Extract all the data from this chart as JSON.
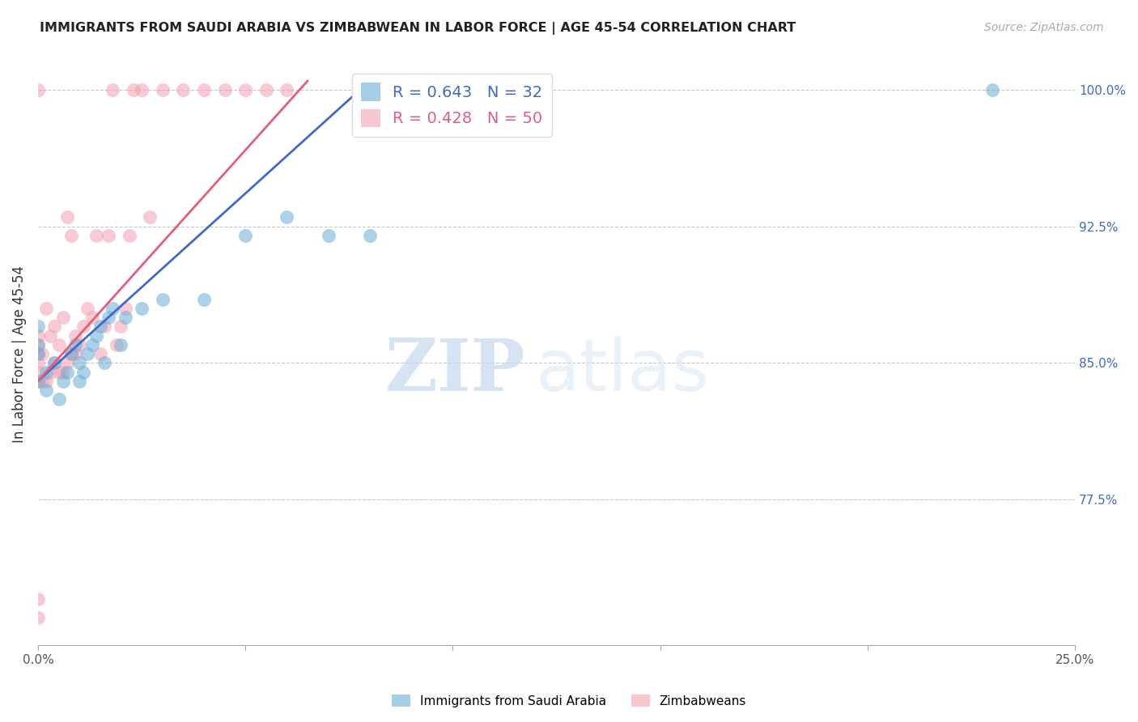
{
  "title": "IMMIGRANTS FROM SAUDI ARABIA VS ZIMBABWEAN IN LABOR FORCE | AGE 45-54 CORRELATION CHART",
  "source": "Source: ZipAtlas.com",
  "ylabel": "In Labor Force | Age 45-54",
  "saudi_R": 0.643,
  "saudi_N": 32,
  "zim_R": 0.428,
  "zim_N": 50,
  "saudi_color": "#6baed6",
  "zim_color": "#f4a0b0",
  "saudi_line_color": "#4169c8",
  "zim_line_color": "#e0607a",
  "right_tick_color": "#4169c8",
  "xlim": [
    0.0,
    0.25
  ],
  "ylim": [
    0.695,
    1.015
  ],
  "yticks_right": [
    0.775,
    0.85,
    0.925,
    1.0
  ],
  "ytick_labels_right": [
    "77.5%",
    "85.0%",
    "92.5%",
    "100.0%"
  ],
  "xticks": [
    0.0,
    0.05,
    0.1,
    0.15,
    0.2,
    0.25
  ],
  "xtick_labels": [
    "0.0%",
    "",
    "",
    "",
    "",
    "25.0%"
  ],
  "watermark_zip": "ZIP",
  "watermark_atlas": "atlas",
  "saudi_x": [
    0.0,
    0.0,
    0.0,
    0.0,
    0.002,
    0.002,
    0.004,
    0.005,
    0.006,
    0.007,
    0.008,
    0.009,
    0.01,
    0.01,
    0.011,
    0.012,
    0.013,
    0.014,
    0.015,
    0.016,
    0.017,
    0.018,
    0.02,
    0.021,
    0.025,
    0.03,
    0.04,
    0.05,
    0.06,
    0.07,
    0.08,
    0.23
  ],
  "saudi_y": [
    0.84,
    0.855,
    0.86,
    0.87,
    0.835,
    0.845,
    0.85,
    0.83,
    0.84,
    0.845,
    0.855,
    0.86,
    0.84,
    0.85,
    0.845,
    0.855,
    0.86,
    0.865,
    0.87,
    0.85,
    0.875,
    0.88,
    0.86,
    0.875,
    0.88,
    0.885,
    0.885,
    0.92,
    0.93,
    0.92,
    0.92,
    1.0
  ],
  "zim_x": [
    0.0,
    0.0,
    0.0,
    0.0,
    0.0,
    0.0,
    0.0,
    0.0,
    0.0,
    0.001,
    0.001,
    0.002,
    0.002,
    0.003,
    0.003,
    0.004,
    0.004,
    0.005,
    0.005,
    0.006,
    0.006,
    0.007,
    0.007,
    0.008,
    0.008,
    0.009,
    0.009,
    0.01,
    0.011,
    0.012,
    0.013,
    0.014,
    0.015,
    0.016,
    0.017,
    0.018,
    0.019,
    0.02,
    0.021,
    0.022,
    0.023,
    0.025,
    0.027,
    0.03,
    0.035,
    0.04,
    0.045,
    0.05,
    0.055,
    0.06
  ],
  "zim_y": [
    0.71,
    0.72,
    0.84,
    0.845,
    0.85,
    0.855,
    0.86,
    0.865,
    1.0,
    0.84,
    0.855,
    0.84,
    0.88,
    0.845,
    0.865,
    0.85,
    0.87,
    0.845,
    0.86,
    0.845,
    0.875,
    0.85,
    0.93,
    0.855,
    0.92,
    0.855,
    0.865,
    0.86,
    0.87,
    0.88,
    0.875,
    0.92,
    0.855,
    0.87,
    0.92,
    1.0,
    0.86,
    0.87,
    0.88,
    0.92,
    1.0,
    1.0,
    0.93,
    1.0,
    1.0,
    1.0,
    1.0,
    1.0,
    1.0,
    1.0
  ],
  "saudi_line_x": [
    0.0,
    0.08
  ],
  "saudi_line_y": [
    0.84,
    1.005
  ],
  "zim_line_x": [
    0.0,
    0.065
  ],
  "zim_line_y": [
    0.84,
    1.005
  ]
}
